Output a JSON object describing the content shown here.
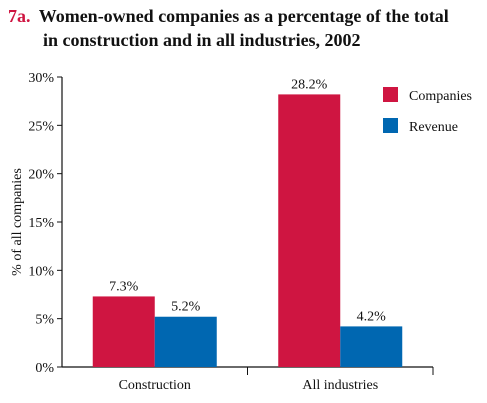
{
  "chart_data": {
    "type": "bar",
    "title_prefix": "7a.",
    "title_lines": [
      "Women-owned companies as a percentage of the total",
      "in construction and in all industries, 2002"
    ],
    "xlabel": "",
    "ylabel": "% of all companies",
    "categories": [
      "Construction",
      "All industries"
    ],
    "series": [
      {
        "name": "Companies",
        "color": "#cf1541",
        "values": [
          7.3,
          28.2
        ],
        "labels": [
          "7.3%",
          "28.2%"
        ]
      },
      {
        "name": "Revenue",
        "color": "#0067b1",
        "values": [
          5.2,
          4.2
        ],
        "labels": [
          "5.2%",
          "4.2%"
        ]
      }
    ],
    "ylim": [
      0,
      30
    ],
    "yticks": [
      0,
      5,
      10,
      15,
      20,
      25,
      30
    ],
    "ytick_labels": [
      "0%",
      "5%",
      "10%",
      "15%",
      "20%",
      "25%",
      "30%"
    ],
    "grid": false,
    "legend_position": "top-right"
  }
}
